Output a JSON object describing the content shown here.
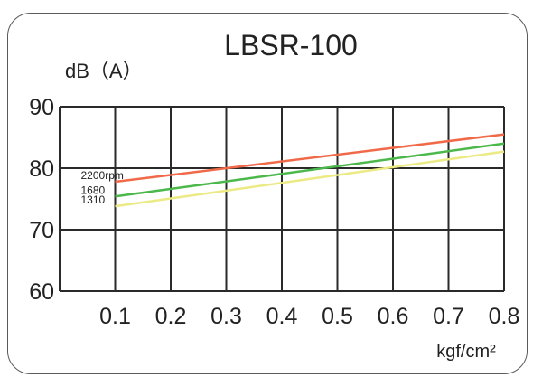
{
  "chart_data": {
    "type": "line",
    "title": "LBSR-100",
    "ylabel": "dB（A）",
    "xlabel": "kgf/cm²",
    "x": [
      0.1,
      0.8
    ],
    "xticks": [
      "0.1",
      "0.2",
      "0.3",
      "0.4",
      "0.5",
      "0.6",
      "0.7",
      "0.8"
    ],
    "yticks": [
      "60",
      "70",
      "80",
      "90"
    ],
    "xlim": [
      0.0,
      0.8
    ],
    "ylim": [
      60,
      90
    ],
    "grid": true,
    "series": [
      {
        "name": "2200rpm",
        "values": [
          77.8,
          85.5
        ],
        "color": "#f06a4a"
      },
      {
        "name": "1680",
        "values": [
          75.4,
          84.0
        ],
        "color": "#4cb84c"
      },
      {
        "name": "1310",
        "values": [
          73.8,
          82.7
        ],
        "color": "#ecea84"
      }
    ]
  }
}
